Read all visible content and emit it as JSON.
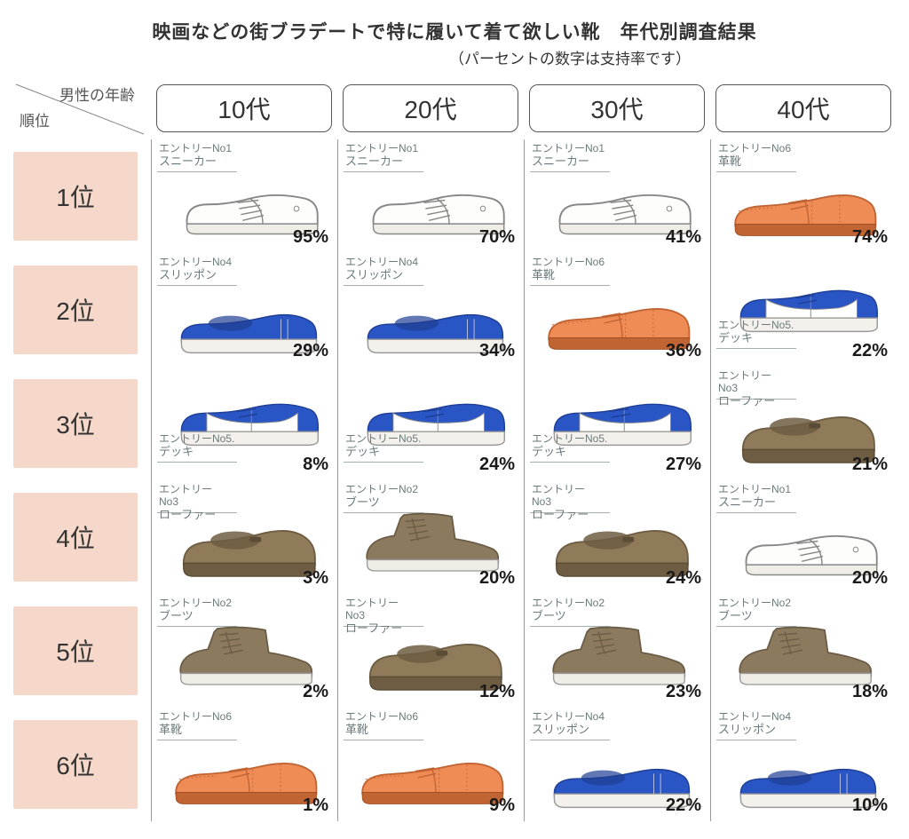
{
  "title": "映画などの街ブラデートで特に履いて着て欲しい靴　年代別調査結果",
  "subtitle": "（パーセントの数字は支持率です）",
  "corner_top": "男性の年齢",
  "corner_bottom": "順位",
  "age_columns": [
    "10代",
    "20代",
    "30代",
    "40代"
  ],
  "rank_rows": [
    "1位",
    "2位",
    "3位",
    "4位",
    "5位",
    "6位"
  ],
  "colors": {
    "rank_bg": "#f5d8ca",
    "border": "#999999",
    "text": "#333333",
    "hand_text": "#6a7a7a",
    "sneaker_body": "#fdfdfb",
    "sneaker_line": "#888888",
    "slipon_body": "#2a55c4",
    "slipon_sole": "#f4f1ec",
    "deck_blue": "#2a55c4",
    "deck_white": "#ffffff",
    "loafer_body": "#8f7a5a",
    "loafer_dark": "#6e5d43",
    "boot_body": "#8c7a5f",
    "boot_dark": "#6a5c45",
    "leather_body": "#ef8b55",
    "leather_line": "#c06433"
  },
  "shoe_types": {
    "sneaker": {
      "entry": "エントリーNo1",
      "name": "スニーカー"
    },
    "boots": {
      "entry": "エントリーNo2",
      "name": "ブーツ"
    },
    "loafer": {
      "entry": "エントリー\nNo3",
      "name": "ローファー"
    },
    "slipon": {
      "entry": "エントリーNo4",
      "name": "スリッポン"
    },
    "deck": {
      "entry": "エントリーNo5.",
      "name": "デッキ"
    },
    "leather": {
      "entry": "エントリーNo6",
      "name": "革靴"
    }
  },
  "table": [
    [
      {
        "type": "sneaker",
        "pct": "95%",
        "label_pos": "topleft"
      },
      {
        "type": "sneaker",
        "pct": "70%",
        "label_pos": "topleft"
      },
      {
        "type": "sneaker",
        "pct": "41%",
        "label_pos": "topleft"
      },
      {
        "type": "leather",
        "pct": "74%",
        "label_pos": "topleft"
      }
    ],
    [
      {
        "type": "slipon",
        "pct": "29%",
        "label_pos": "topleft"
      },
      {
        "type": "slipon",
        "pct": "34%",
        "label_pos": "topleft"
      },
      {
        "type": "leather",
        "pct": "36%",
        "label_pos": "topleft"
      },
      {
        "type": "deck",
        "pct": "22%",
        "label_pos": "bottomleft"
      }
    ],
    [
      {
        "type": "deck",
        "pct": "8%",
        "label_pos": "bottomleft"
      },
      {
        "type": "deck",
        "pct": "24%",
        "label_pos": "bottomleft"
      },
      {
        "type": "deck",
        "pct": "27%",
        "label_pos": "bottomleft"
      },
      {
        "type": "loafer",
        "pct": "21%",
        "label_pos": "topleft"
      }
    ],
    [
      {
        "type": "loafer",
        "pct": "3%",
        "label_pos": "topleft"
      },
      {
        "type": "boots",
        "pct": "20%",
        "label_pos": "topleft"
      },
      {
        "type": "loafer",
        "pct": "24%",
        "label_pos": "topleft"
      },
      {
        "type": "sneaker",
        "pct": "20%",
        "label_pos": "topleft"
      }
    ],
    [
      {
        "type": "boots",
        "pct": "2%",
        "label_pos": "topleft"
      },
      {
        "type": "loafer",
        "pct": "12%",
        "label_pos": "topleft"
      },
      {
        "type": "boots",
        "pct": "23%",
        "label_pos": "topleft"
      },
      {
        "type": "boots",
        "pct": "18%",
        "label_pos": "topleft"
      }
    ],
    [
      {
        "type": "leather",
        "pct": "1%",
        "label_pos": "topleft"
      },
      {
        "type": "leather",
        "pct": "9%",
        "label_pos": "topleft"
      },
      {
        "type": "slipon",
        "pct": "22%",
        "label_pos": "topleft"
      },
      {
        "type": "slipon",
        "pct": "10%",
        "label_pos": "topleft"
      }
    ]
  ]
}
